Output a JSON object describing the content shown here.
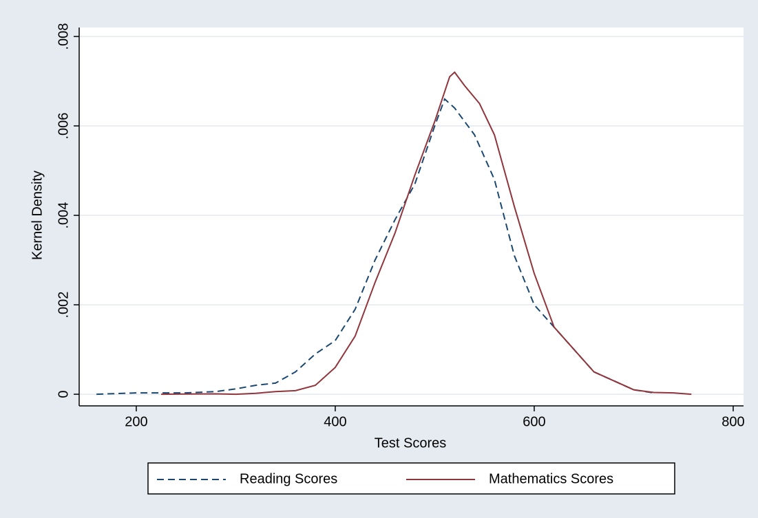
{
  "chart_data": {
    "type": "line",
    "x_label": "Test Scores",
    "y_label": "Kernel Density",
    "xlim": [
      142.6,
      810.4
    ],
    "ylim": [
      -0.00026,
      0.0082
    ],
    "xticks": [
      200,
      400,
      600,
      800
    ],
    "yticks": [
      0,
      {
        "value": 0.002,
        "label": ".002"
      },
      {
        "value": 0.004,
        "label": ".004"
      },
      {
        "value": 0.006,
        "label": ".006"
      },
      {
        "value": 0.008,
        "label": ".008"
      }
    ],
    "grid": true,
    "legend": "bottom",
    "series": [
      {
        "name": "Reading Scores",
        "color": "#1a476f",
        "dash": true,
        "x": [
          160,
          200,
          250,
          280,
          300,
          320,
          340,
          360,
          380,
          400,
          420,
          440,
          460,
          480,
          500,
          510,
          520,
          540,
          560,
          580,
          600,
          620,
          640,
          660,
          680,
          700,
          720
        ],
        "values": [
          0,
          3e-05,
          3e-05,
          6e-05,
          0.00012,
          0.0002,
          0.00025,
          0.0005,
          0.0009,
          0.0012,
          0.0019,
          0.003,
          0.0039,
          0.0047,
          0.006,
          0.0066,
          0.0064,
          0.0058,
          0.0048,
          0.0031,
          0.002,
          0.0015,
          0.001,
          0.0005,
          0.0003,
          0.0001,
          3e-05
        ]
      },
      {
        "name": "Mathematics Scores",
        "color": "#90353b",
        "dash": false,
        "x": [
          225,
          280,
          300,
          320,
          340,
          360,
          380,
          400,
          420,
          440,
          460,
          480,
          500,
          515,
          520,
          530,
          545,
          560,
          580,
          600,
          620,
          640,
          660,
          680,
          700,
          720,
          740,
          758
        ],
        "values": [
          0,
          1e-05,
          0,
          2e-05,
          6e-05,
          8e-05,
          0.0002,
          0.0006,
          0.0013,
          0.0025,
          0.0036,
          0.0049,
          0.0061,
          0.0071,
          0.0072,
          0.0069,
          0.0065,
          0.0058,
          0.0042,
          0.0027,
          0.0015,
          0.001,
          0.0005,
          0.0003,
          0.0001,
          4e-05,
          3e-05,
          0
        ]
      }
    ]
  }
}
